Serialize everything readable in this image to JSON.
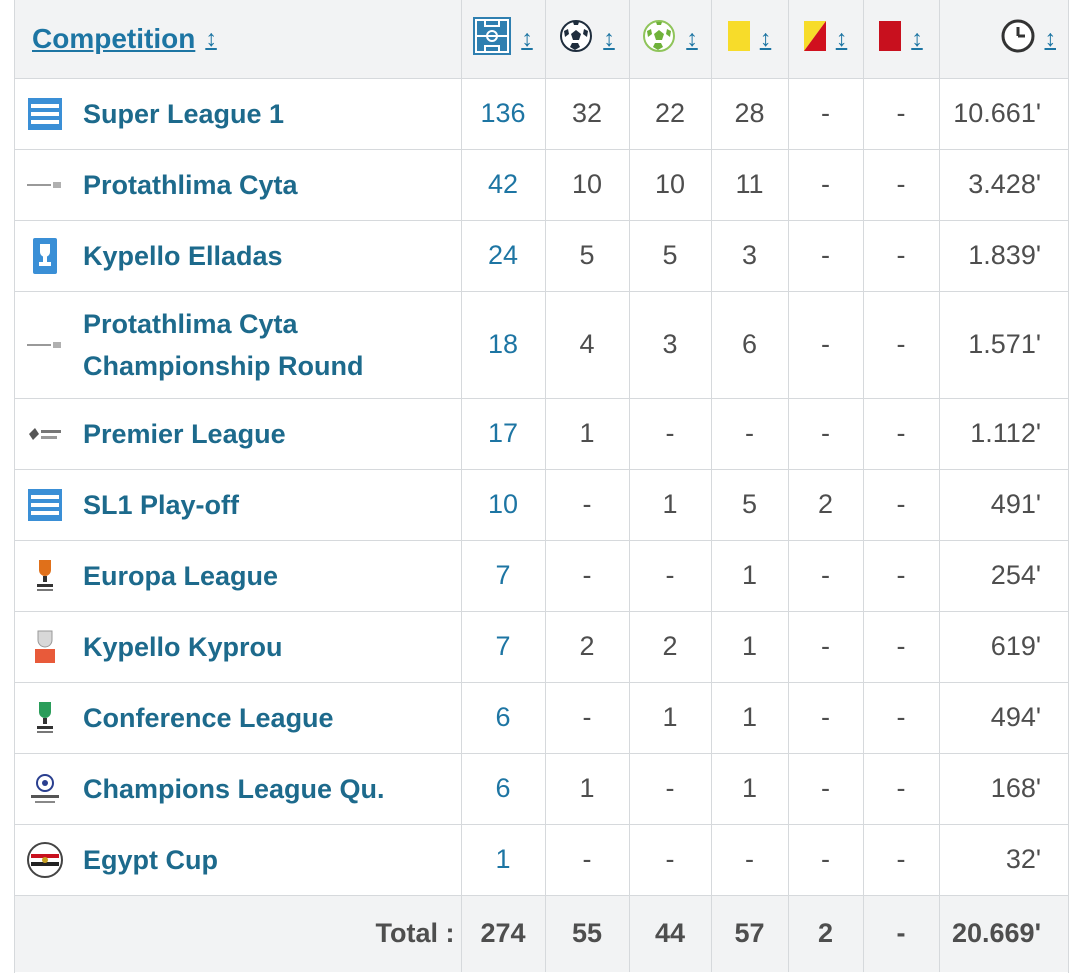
{
  "header": {
    "competition_label": "Competition",
    "sort_symbol": "↕",
    "icons": {
      "appearances": "pitch-icon",
      "goals": "ball-icon",
      "assists": "assist-ball-icon",
      "yellow": "yellow-card-icon",
      "yellow_red": "yellow-red-card-icon",
      "red": "red-card-icon",
      "minutes": "clock-icon"
    }
  },
  "colors": {
    "accent": "#1d75a3",
    "yellow_card": "#f7dc2a",
    "red_card": "#d0101e"
  },
  "rows": [
    {
      "name": "Super League 1",
      "logo": "super-league-greece-logo",
      "apps": "136",
      "goals": "32",
      "assists": "22",
      "yellow": "28",
      "yellow_red": "-",
      "red": "-",
      "minutes": "10.661'"
    },
    {
      "name": "Protathlima Cyta",
      "logo": "cyta-league-logo",
      "apps": "42",
      "goals": "10",
      "assists": "10",
      "yellow": "11",
      "yellow_red": "-",
      "red": "-",
      "minutes": "3.428'"
    },
    {
      "name": "Kypello Elladas",
      "logo": "greek-cup-logo",
      "apps": "24",
      "goals": "5",
      "assists": "5",
      "yellow": "3",
      "yellow_red": "-",
      "red": "-",
      "minutes": "1.839'"
    },
    {
      "name": "Protathlima Cyta Championship Round",
      "logo": "cyta-championship-logo",
      "apps": "18",
      "goals": "4",
      "assists": "3",
      "yellow": "6",
      "yellow_red": "-",
      "red": "-",
      "minutes": "1.571'"
    },
    {
      "name": "Premier League",
      "logo": "egypt-premier-league-logo",
      "apps": "17",
      "goals": "1",
      "assists": "-",
      "yellow": "-",
      "yellow_red": "-",
      "red": "-",
      "minutes": "1.112'"
    },
    {
      "name": "SL1 Play-off",
      "logo": "super-league-playoff-logo",
      "apps": "10",
      "goals": "-",
      "assists": "1",
      "yellow": "5",
      "yellow_red": "2",
      "red": "-",
      "minutes": "491'"
    },
    {
      "name": "Europa League",
      "logo": "europa-league-logo",
      "apps": "7",
      "goals": "-",
      "assists": "-",
      "yellow": "1",
      "yellow_red": "-",
      "red": "-",
      "minutes": "254'"
    },
    {
      "name": "Kypello Kyprou",
      "logo": "cyprus-cup-logo",
      "apps": "7",
      "goals": "2",
      "assists": "2",
      "yellow": "1",
      "yellow_red": "-",
      "red": "-",
      "minutes": "619'"
    },
    {
      "name": "Conference League",
      "logo": "conference-league-logo",
      "apps": "6",
      "goals": "-",
      "assists": "1",
      "yellow": "1",
      "yellow_red": "-",
      "red": "-",
      "minutes": "494'"
    },
    {
      "name": "Champions League Qu.",
      "logo": "champions-league-logo",
      "apps": "6",
      "goals": "1",
      "assists": "-",
      "yellow": "1",
      "yellow_red": "-",
      "red": "-",
      "minutes": "168'"
    },
    {
      "name": "Egypt Cup",
      "logo": "egypt-cup-logo",
      "apps": "1",
      "goals": "-",
      "assists": "-",
      "yellow": "-",
      "yellow_red": "-",
      "red": "-",
      "minutes": "32'"
    }
  ],
  "totals": {
    "label": "Total :",
    "apps": "274",
    "goals": "55",
    "assists": "44",
    "yellow": "57",
    "yellow_red": "2",
    "red": "-",
    "minutes": "20.669'"
  }
}
